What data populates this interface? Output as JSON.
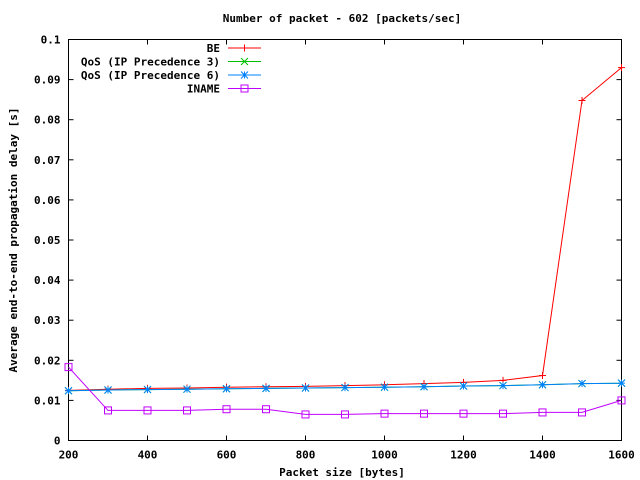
{
  "chart_data": {
    "type": "line",
    "title": "Number of packet - 602 [packets/sec]",
    "xlabel": "Packet size [bytes]",
    "ylabel": "Average end-to-end propagation delay [s]",
    "xlim": [
      200,
      1600
    ],
    "ylim": [
      0,
      0.1
    ],
    "xticks": [
      200,
      400,
      600,
      800,
      1000,
      1200,
      1400,
      1600
    ],
    "xtick_labels": [
      "200",
      "400",
      "600",
      "800",
      "1000",
      "1200",
      "1400",
      "1600"
    ],
    "yticks": [
      0,
      0.01,
      0.02,
      0.03,
      0.04,
      0.05,
      0.06,
      0.07,
      0.08,
      0.09,
      0.1
    ],
    "ytick_labels": [
      "0",
      "0.01",
      "0.02",
      "0.03",
      "0.04",
      "0.05",
      "0.06",
      "0.07",
      "0.08",
      "0.09",
      "0.1"
    ],
    "grid": false,
    "legend_position": "top-left",
    "x": [
      200,
      300,
      400,
      500,
      600,
      700,
      800,
      900,
      1000,
      1100,
      1200,
      1300,
      1400,
      1500,
      1600
    ],
    "series": [
      {
        "name": "BE",
        "color": "#ff0000",
        "marker": "plus",
        "values": [
          0.0125,
          0.0128,
          0.013,
          0.0131,
          0.0133,
          0.0134,
          0.0135,
          0.0137,
          0.0139,
          0.0142,
          0.0145,
          0.015,
          0.0162,
          0.0848,
          0.093
        ]
      },
      {
        "name": "QoS (IP Precedence 3)",
        "color": "#00c000",
        "marker": "cross",
        "values": [
          0.0124,
          0.0126,
          0.0127,
          0.0128,
          0.0129,
          0.013,
          0.0131,
          0.0132,
          0.0133,
          0.0134,
          0.0136,
          0.0137,
          0.0139,
          0.0142,
          0.0143
        ]
      },
      {
        "name": "QoS (IP Precedence 6)",
        "color": "#0080ff",
        "marker": "star",
        "values": [
          0.0124,
          0.0126,
          0.0127,
          0.0128,
          0.0129,
          0.013,
          0.0131,
          0.0132,
          0.0133,
          0.0134,
          0.0136,
          0.0137,
          0.0139,
          0.0142,
          0.0143
        ]
      },
      {
        "name": "INAME",
        "color": "#c000ff",
        "marker": "square",
        "values": [
          0.0183,
          0.0075,
          0.0075,
          0.0075,
          0.0078,
          0.0078,
          0.0065,
          0.0065,
          0.0067,
          0.0067,
          0.0067,
          0.0067,
          0.007,
          0.007,
          0.01
        ]
      }
    ]
  }
}
